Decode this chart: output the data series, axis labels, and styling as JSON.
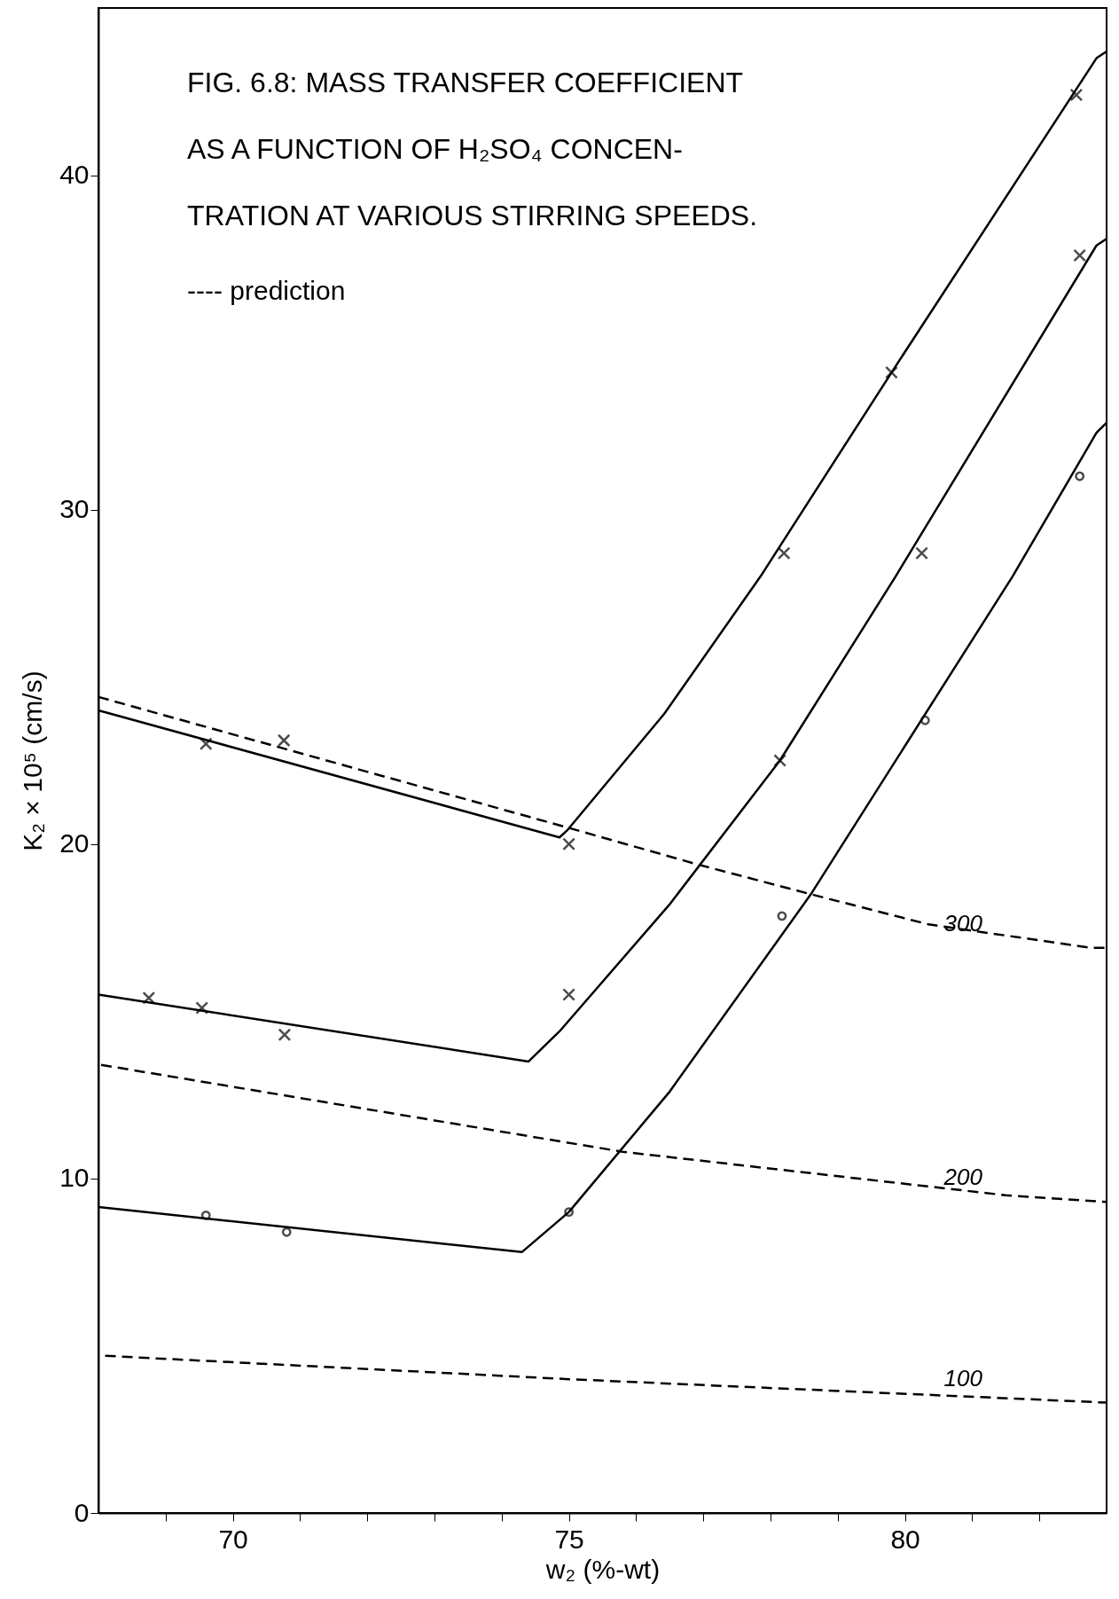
{
  "chart_data": {
    "type": "line",
    "title": "FIG. 6.8: MASS TRANSFER COEFFICIENT AS A FUNCTION OF H₂SO₄ CONCEN- TRATION AT VARIOUS STIRRING SPEEDS.",
    "xlabel": "w₂ (%-wt)",
    "ylabel": "K₂ × 10⁵ (cm/s)",
    "xlim": [
      68,
      83
    ],
    "ylim": [
      0,
      45
    ],
    "xticks": [
      {
        "value": 69,
        "label": null
      },
      70,
      {
        "value": 71,
        "label": null
      },
      {
        "value": 72,
        "label": null
      },
      {
        "value": 73,
        "label": null
      },
      {
        "value": 74,
        "label": null
      },
      75,
      {
        "value": 76,
        "label": null
      },
      {
        "value": 77,
        "label": null
      },
      {
        "value": 78,
        "label": null
      },
      {
        "value": 79,
        "label": null
      },
      80,
      {
        "value": 81,
        "label": null
      },
      {
        "value": 82,
        "label": null
      }
    ],
    "yticks": [
      0,
      10,
      20,
      30,
      40
    ],
    "grid": false,
    "annotations": [
      "---- prediction"
    ],
    "series": [
      {
        "type": "scatter",
        "marker": "cross",
        "color": "#000000",
        "x": [
          69.6,
          70.76,
          75.0,
          78.2,
          79.8,
          82.55
        ],
        "values": [
          23.0,
          23.1,
          20.0,
          28.7,
          34.1,
          42.4
        ]
      },
      {
        "type": "scatter",
        "marker": "cross",
        "color": "#000000",
        "x": [
          68.75,
          69.54,
          70.77,
          75.0,
          78.14,
          80.25,
          82.6
        ],
        "values": [
          15.4,
          15.1,
          14.3,
          15.5,
          22.5,
          28.7,
          37.6
        ]
      },
      {
        "type": "scatter",
        "marker": "circle",
        "color": "#000000",
        "x": [
          69.6,
          70.8,
          75.0,
          78.17,
          80.3,
          82.6
        ],
        "values": [
          8.9,
          8.4,
          9.0,
          17.85,
          23.7,
          31.0
        ]
      },
      {
        "line_style": "solid",
        "color": "#000000",
        "x": [
          68,
          74.86,
          74.97,
          76.42,
          77.85,
          79.8,
          82.85,
          83
        ],
        "values": [
          24.0,
          20.2,
          20.4,
          23.9,
          28.0,
          34.1,
          43.5,
          43.7
        ]
      },
      {
        "line_style": "solid",
        "color": "#000000",
        "x": [
          68,
          74.4,
          74.86,
          76.5,
          78.14,
          79.86,
          82.85,
          83
        ],
        "values": [
          15.5,
          13.5,
          14.4,
          18.2,
          22.5,
          28.0,
          37.9,
          38.1
        ]
      },
      {
        "line_style": "solid",
        "color": "#000000",
        "x": [
          68,
          74.3,
          75.0,
          76.5,
          78.6,
          81.6,
          82.85,
          83
        ],
        "values": [
          9.15,
          7.8,
          9.0,
          12.6,
          18.5,
          28.0,
          32.3,
          32.6
        ]
      },
      {
        "line_style": "dashed",
        "name": "300",
        "color": "#000000",
        "x": [
          68,
          74.97,
          76.9,
          78.6,
          80.35,
          82.76,
          83
        ],
        "values": [
          24.4,
          20.5,
          19.4,
          18.5,
          17.6,
          16.9,
          16.9
        ]
      },
      {
        "line_style": "dashed",
        "name": "200",
        "color": "#000000",
        "x": [
          68.04,
          75.8,
          81.5,
          83
        ],
        "values": [
          13.4,
          10.8,
          9.5,
          9.3
        ]
      },
      {
        "line_style": "dashed",
        "name": "100",
        "color": "#000000",
        "x": [
          68.1,
          75.0,
          83
        ],
        "values": [
          4.7,
          4.0,
          3.3
        ]
      }
    ]
  }
}
